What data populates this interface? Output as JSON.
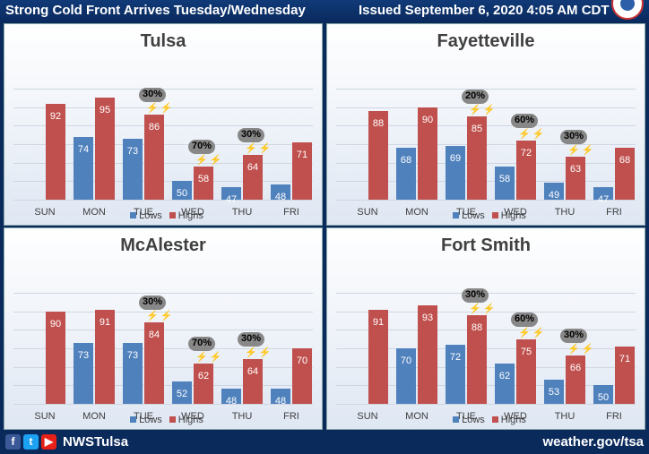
{
  "header": {
    "title": "Strong Cold Front Arrives Tuesday/Wednesday",
    "issued": "Issued September 6, 2020 4:05 AM CDT"
  },
  "footer": {
    "handle": "NWSTulsa",
    "website": "weather.gov/tsa",
    "icons": [
      "facebook-icon",
      "twitter-icon",
      "youtube-icon"
    ]
  },
  "legend": {
    "lows": "Lows",
    "highs": "Highs"
  },
  "colors": {
    "lows": "#4f81bd",
    "highs": "#c0504d",
    "header_bg": "#0b2a5c"
  },
  "chart_data": [
    {
      "type": "bar",
      "title": "Tulsa",
      "categories": [
        "SUN",
        "MON",
        "TUE",
        "WED",
        "THU",
        "FRI"
      ],
      "series": [
        {
          "name": "Lows",
          "values": [
            null,
            74,
            73,
            50,
            47,
            48
          ]
        },
        {
          "name": "Highs",
          "values": [
            92,
            95,
            86,
            58,
            64,
            71
          ]
        }
      ],
      "annotations": [
        {
          "day": "TUE",
          "text": "30%"
        },
        {
          "day": "WED",
          "text": "70%"
        },
        {
          "day": "THU",
          "text": "30%"
        }
      ],
      "ylim": [
        40,
        100
      ],
      "grid": true,
      "legend_position": "bottom"
    },
    {
      "type": "bar",
      "title": "Fayetteville",
      "categories": [
        "SUN",
        "MON",
        "TUE",
        "WED",
        "THU",
        "FRI"
      ],
      "series": [
        {
          "name": "Lows",
          "values": [
            null,
            68,
            69,
            58,
            49,
            47
          ]
        },
        {
          "name": "Highs",
          "values": [
            88,
            90,
            85,
            72,
            63,
            68
          ]
        }
      ],
      "annotations": [
        {
          "day": "TUE",
          "text": "20%"
        },
        {
          "day": "WED",
          "text": "60%"
        },
        {
          "day": "THU",
          "text": "30%"
        }
      ],
      "ylim": [
        40,
        100
      ],
      "grid": true,
      "legend_position": "bottom"
    },
    {
      "type": "bar",
      "title": "McAlester",
      "categories": [
        "SUN",
        "MON",
        "TUE",
        "WED",
        "THU",
        "FRI"
      ],
      "series": [
        {
          "name": "Lows",
          "values": [
            null,
            73,
            73,
            52,
            48,
            48
          ]
        },
        {
          "name": "Highs",
          "values": [
            90,
            91,
            84,
            62,
            64,
            70
          ]
        }
      ],
      "annotations": [
        {
          "day": "TUE",
          "text": "30%"
        },
        {
          "day": "WED",
          "text": "70%"
        },
        {
          "day": "THU",
          "text": "30%"
        }
      ],
      "ylim": [
        40,
        100
      ],
      "grid": true,
      "legend_position": "bottom"
    },
    {
      "type": "bar",
      "title": "Fort Smith",
      "categories": [
        "SUN",
        "MON",
        "TUE",
        "WED",
        "THU",
        "FRI"
      ],
      "series": [
        {
          "name": "Lows",
          "values": [
            null,
            70,
            72,
            62,
            53,
            50
          ]
        },
        {
          "name": "Highs",
          "values": [
            91,
            93,
            88,
            75,
            66,
            71
          ]
        }
      ],
      "annotations": [
        {
          "day": "TUE",
          "text": "30%"
        },
        {
          "day": "WED",
          "text": "60%"
        },
        {
          "day": "THU",
          "text": "30%"
        }
      ],
      "ylim": [
        40,
        100
      ],
      "grid": true,
      "legend_position": "bottom"
    }
  ]
}
